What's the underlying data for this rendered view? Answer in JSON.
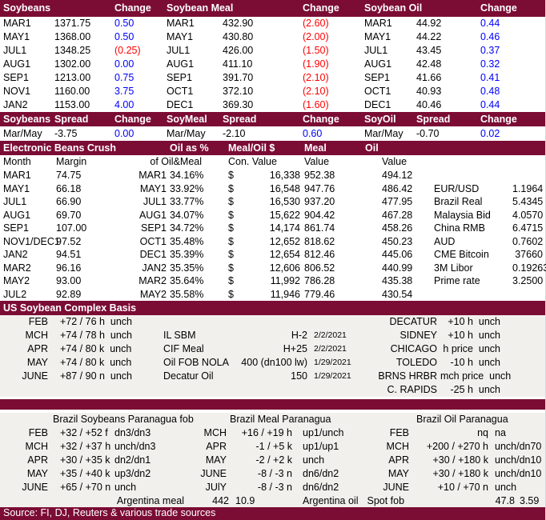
{
  "colors": {
    "header_bg": "#7b0c34",
    "header_text": "#ffffff",
    "positive_change": "#0000ff",
    "negative_change": "#ff0000",
    "section_bg": "#f2f0ed"
  },
  "futures": {
    "header": {
      "t1": "Soybeans",
      "c1": "Change",
      "t2": "Soybean Meal",
      "c2": "Change",
      "t3": "Soybean Oil",
      "c3": "Change"
    },
    "rows": [
      {
        "m1": "MAR1",
        "p1": "1371.75",
        "ch1": "0.50",
        "m2": "MAR1",
        "p2": "432.90",
        "ch2": "(2.60)",
        "m3": "MAR1",
        "p3": "44.92",
        "ch3": "0.44"
      },
      {
        "m1": "MAY1",
        "p1": "1368.00",
        "ch1": "0.50",
        "m2": "MAY1",
        "p2": "430.80",
        "ch2": "(2.00)",
        "m3": "MAY1",
        "p3": "44.22",
        "ch3": "0.46"
      },
      {
        "m1": "JUL1",
        "p1": "1348.25",
        "ch1": "(0.25)",
        "m2": "JUL1",
        "p2": "426.00",
        "ch2": "(1.50)",
        "m3": "JUL1",
        "p3": "43.45",
        "ch3": "0.37"
      },
      {
        "m1": "AUG1",
        "p1": "1302.00",
        "ch1": "0.00",
        "m2": "AUG1",
        "p2": "411.10",
        "ch2": "(1.90)",
        "m3": "AUG1",
        "p3": "42.48",
        "ch3": "0.32"
      },
      {
        "m1": "SEP1",
        "p1": "1213.00",
        "ch1": "0.75",
        "m2": "SEP1",
        "p2": "391.70",
        "ch2": "(2.10)",
        "m3": "SEP1",
        "p3": "41.66",
        "ch3": "0.41"
      },
      {
        "m1": "NOV1",
        "p1": "1160.00",
        "ch1": "3.75",
        "m2": "OCT1",
        "p2": "372.10",
        "ch2": "(2.10)",
        "m3": "OCT1",
        "p3": "40.93",
        "ch3": "0.48"
      },
      {
        "m1": "JAN2",
        "p1": "1153.00",
        "ch1": "4.00",
        "m2": "DEC1",
        "p2": "369.30",
        "ch2": "(1.60)",
        "m3": "DEC1",
        "p3": "40.46",
        "ch3": "0.44"
      }
    ]
  },
  "spreads": {
    "header": {
      "t1": "Soybeans",
      "s1": "Spread",
      "c1": "Change",
      "t2": "SoyMeal",
      "s2": "Spread",
      "c2": "Change",
      "t3": "SoyOil",
      "s3": "Spread",
      "c3": "Change"
    },
    "rows": [
      {
        "m1": "Mar/May",
        "p1": "-3.75",
        "ch1": "0.00",
        "m2": "Mar/May",
        "p2": "-2.10",
        "ch2": "0.60",
        "m3": "Mar/May",
        "p3": "-0.70",
        "ch3": "0.02"
      }
    ]
  },
  "crush": {
    "title": "Electronic Beans Crush",
    "header": {
      "oil_pct": "Oil as %",
      "meal_oil": "Meal/Oil $",
      "meal": "Meal",
      "oil": "Oil"
    },
    "subheader": {
      "month": "Month",
      "margin": "Margin",
      "of_oil_meal": "of Oil&Meal",
      "con_value": "Con. Value",
      "value1": "Value",
      "value2": "Value"
    },
    "rows": [
      {
        "month": "MAR1",
        "margin": "74.75",
        "contract": "MAR1",
        "pct": "34.16%",
        "cur": "$",
        "conval": "16,338",
        "meal": "952.38",
        "oil": "494.12",
        "fx": "",
        "fxv": ""
      },
      {
        "month": "MAY1",
        "margin": "66.18",
        "contract": "MAY1",
        "pct": "33.92%",
        "cur": "$",
        "conval": "16,548",
        "meal": "947.76",
        "oil": "486.42",
        "fx": "EUR/USD",
        "fxv": "1.1964"
      },
      {
        "month": "JUL1",
        "margin": "66.90",
        "contract": "JUL1",
        "pct": "33.77%",
        "cur": "$",
        "conval": "16,530",
        "meal": "937.20",
        "oil": "477.95",
        "fx": "Brazil Real",
        "fxv": "5.4345"
      },
      {
        "month": "AUG1",
        "margin": "69.70",
        "contract": "AUG1",
        "pct": "34.07%",
        "cur": "$",
        "conval": "15,622",
        "meal": "904.42",
        "oil": "467.28",
        "fx": "Malaysia Bid",
        "fxv": "4.0570"
      },
      {
        "month": "SEP1",
        "margin": "107.00",
        "contract": "SEP1",
        "pct": "34.72%",
        "cur": "$",
        "conval": "14,174",
        "meal": "861.74",
        "oil": "458.26",
        "fx": "China RMB",
        "fxv": "6.4715"
      },
      {
        "month": "NOV1/DEC1",
        "margin": "97.52",
        "contract": "OCT1",
        "pct": "35.48%",
        "cur": "$",
        "conval": "12,652",
        "meal": "818.62",
        "oil": "450.23",
        "fx": "AUD",
        "fxv": "0.7602"
      },
      {
        "month": "JAN2",
        "margin": "94.51",
        "contract": "DEC1",
        "pct": "35.39%",
        "cur": "$",
        "conval": "12,654",
        "meal": "812.46",
        "oil": "445.06",
        "fx": "CME Bitcoin",
        "fxv": "37660"
      },
      {
        "month": "MAR2",
        "margin": "96.16",
        "contract": "JAN2",
        "pct": "35.35%",
        "cur": "$",
        "conval": "12,606",
        "meal": "806.52",
        "oil": "440.99",
        "fx": "3M Libor",
        "fxv": "0.19263"
      },
      {
        "month": "MAY2",
        "margin": "93.00",
        "contract": "MAR2",
        "pct": "35.64%",
        "cur": "$",
        "conval": "11,992",
        "meal": "786.28",
        "oil": "435.38",
        "fx": "Prime rate",
        "fxv": "3.2500"
      },
      {
        "month": "JUL2",
        "margin": "92.89",
        "contract": "MAY2",
        "pct": "35.58%",
        "cur": "$",
        "conval": "11,946",
        "meal": "779.46",
        "oil": "430.54",
        "fx": "",
        "fxv": ""
      }
    ]
  },
  "basis": {
    "title": "US Soybean Complex Basis",
    "rows": [
      {
        "month": "FEB",
        "basis": "+72 / 76 h  unch",
        "label": "",
        "value": "",
        "date": "",
        "loc": "DECATUR",
        "locval": "+10 h  unch"
      },
      {
        "month": "MCH",
        "basis": "+74 / 78 h  unch",
        "label": "IL SBM",
        "value": "H-2",
        "date": "2/2/2021",
        "loc": "SIDNEY",
        "locval": "+10 h  unch"
      },
      {
        "month": "APR",
        "basis": "+74 / 80 k  unch",
        "label": "CIF Meal",
        "value": "H+25",
        "date": "2/2/2021",
        "loc": "CHICAGO",
        "locval": "h price  unch"
      },
      {
        "month": "MAY",
        "basis": "+74 / 80 k  unch",
        "label": "Oil FOB NOLA",
        "value": "400 (dn100 lw)",
        "date": "1/29/2021",
        "loc": "TOLEDO",
        "locval": "-10 h  unch"
      },
      {
        "month": "JUNE",
        "basis": "+87 / 90 n  unch",
        "label": "Decatur Oil",
        "value": "150",
        "date": "1/29/2021",
        "loc": "BRNS HRBR",
        "locval": "mch price  unch"
      },
      {
        "month": "",
        "basis": "",
        "label": "",
        "value": "",
        "date": "",
        "loc": "C. RAPIDS",
        "locval": "-25 h  unch"
      }
    ]
  },
  "brazil": {
    "titles": {
      "beans": "Brazil Soybeans Paranagua fob",
      "meal": "Brazil Meal Paranagua",
      "oil": "Brazil Oil Paranagua"
    },
    "rows": [
      {
        "bm": "FEB",
        "bs": "+32 / +52 f",
        "bc": "dn3/dn3",
        "mm": "MCH",
        "ms": "+16 / +19 h",
        "mc": "up1/unch",
        "om": "FEB",
        "os": "nq",
        "oc": "na"
      },
      {
        "bm": "MCH",
        "bs": "+32 / +37 h",
        "bc": "unch/dn3",
        "mm": "APR",
        "ms": "-1 / +5 k",
        "mc": "up1/up1",
        "om": "MCH",
        "os": "+200 / +270 h",
        "oc": "unch/dn70"
      },
      {
        "bm": "APR",
        "bs": "+30 / +35 k",
        "bc": "dn2/dn1",
        "mm": "MAY",
        "ms": "-2 / +2 k",
        "mc": "unch",
        "om": "APR",
        "os": "+30 / +180 k",
        "oc": "unch/dn10"
      },
      {
        "bm": "MAY",
        "bs": "+35 / +40 k",
        "bc": "up3/dn2",
        "mm": "JUNE",
        "ms": "-8 / -3 n",
        "mc": "dn6/dn2",
        "om": "MAY",
        "os": "+30 / +180 k",
        "oc": "unch/dn10"
      },
      {
        "bm": "JUNE",
        "bs": "+65 / +70 n",
        "bc": "unch",
        "mm": "JUlY",
        "ms": "-8 / -3 n",
        "mc": "dn6/dn2",
        "om": "JUNE",
        "os": "+10 / +70 n",
        "oc": "unch"
      }
    ],
    "argentina": {
      "meal_label": "Argentina meal",
      "meal_value": "442",
      "meal_value2": "10.9",
      "oil_label": "Argentina oil",
      "spot_label": "Spot fob",
      "spot_value": "47.8",
      "spot_value2": "3.59"
    }
  },
  "footer": {
    "source": "Source: FI, DJ, Reuters & various trade sources"
  }
}
